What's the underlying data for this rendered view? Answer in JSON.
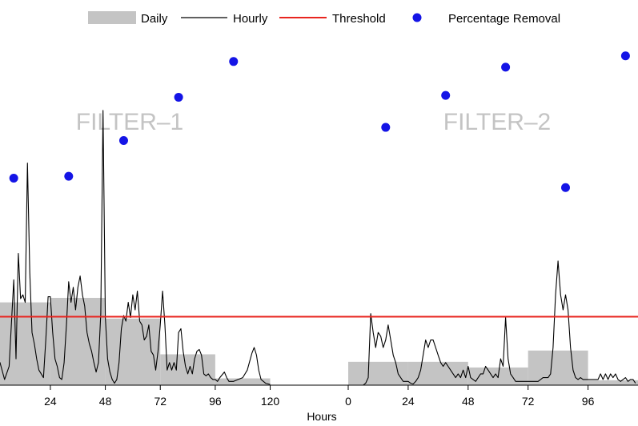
{
  "chart_data": {
    "type": "bar",
    "xlabel": "Hours",
    "legend": {
      "position": "top",
      "entries": [
        {
          "name": "Daily",
          "kind": "bar"
        },
        {
          "name": "Hourly",
          "kind": "line"
        },
        {
          "name": "Threshold",
          "kind": "line"
        },
        {
          "name": "Percentage Removal",
          "kind": "scatter"
        }
      ]
    },
    "colors": {
      "daily": "#c4c4c4",
      "hourly": "#000000",
      "threshold": "#e8251f",
      "removal": "#1414e6",
      "panel_label": "#c4c4c4"
    },
    "y_axis": {
      "label": "",
      "ylim": [
        0,
        100
      ],
      "ticks_shown": false
    },
    "threshold": 18.2,
    "panels": [
      {
        "label": "FILTER–1",
        "x_ticks": [
          "24",
          "48",
          "72",
          "96",
          "120"
        ],
        "x_tick_values": [
          24,
          48,
          72,
          96,
          120
        ],
        "xlim": [
          2,
          131
        ],
        "daily": [
          {
            "start": 0,
            "end": 24,
            "value": 22
          },
          {
            "start": 24,
            "end": 48,
            "value": 23.2
          },
          {
            "start": 48,
            "end": 72,
            "value": 17.7
          },
          {
            "start": 72,
            "end": 96,
            "value": 8.2
          },
          {
            "start": 96,
            "end": 120,
            "value": 1.8
          }
        ],
        "hourly": [
          [
            0,
            7
          ],
          [
            2,
            6
          ],
          [
            4,
            1.5
          ],
          [
            6,
            5
          ],
          [
            8,
            28
          ],
          [
            9,
            7
          ],
          [
            10,
            35
          ],
          [
            11,
            23
          ],
          [
            12,
            24
          ],
          [
            13,
            22
          ],
          [
            14,
            59
          ],
          [
            15,
            30
          ],
          [
            16,
            14
          ],
          [
            17,
            11
          ],
          [
            18,
            7
          ],
          [
            19,
            4
          ],
          [
            20,
            3
          ],
          [
            21,
            2
          ],
          [
            22,
            12
          ],
          [
            23,
            23.5
          ],
          [
            24,
            23.5
          ],
          [
            25,
            14
          ],
          [
            26,
            7
          ],
          [
            27,
            5
          ],
          [
            28,
            2
          ],
          [
            29,
            1.5
          ],
          [
            30,
            6
          ],
          [
            31,
            16
          ],
          [
            32,
            27.5
          ],
          [
            33,
            22
          ],
          [
            34,
            26
          ],
          [
            35,
            20
          ],
          [
            36,
            26
          ],
          [
            37,
            29
          ],
          [
            38,
            24
          ],
          [
            39,
            21
          ],
          [
            40,
            14
          ],
          [
            41,
            11
          ],
          [
            42,
            9
          ],
          [
            43,
            6
          ],
          [
            44,
            3.5
          ],
          [
            45,
            6
          ],
          [
            46,
            19
          ],
          [
            47,
            73
          ],
          [
            48,
            18
          ],
          [
            49,
            7
          ],
          [
            50,
            3.5
          ],
          [
            51,
            1.5
          ],
          [
            52,
            0.5
          ],
          [
            53,
            1.5
          ],
          [
            54,
            6
          ],
          [
            55,
            15
          ],
          [
            56,
            18.5
          ],
          [
            57,
            17
          ],
          [
            58,
            22
          ],
          [
            59,
            18
          ],
          [
            60,
            24
          ],
          [
            61,
            20
          ],
          [
            62,
            25
          ],
          [
            63,
            17
          ],
          [
            64,
            16
          ],
          [
            65,
            12
          ],
          [
            66,
            13
          ],
          [
            67,
            16
          ],
          [
            68,
            9
          ],
          [
            69,
            8
          ],
          [
            70,
            4
          ],
          [
            71,
            9
          ],
          [
            72,
            16
          ],
          [
            73,
            25
          ],
          [
            74,
            16
          ],
          [
            75,
            4
          ],
          [
            76,
            6
          ],
          [
            77,
            4
          ],
          [
            78,
            6
          ],
          [
            79,
            4
          ],
          [
            80,
            14
          ],
          [
            81,
            15
          ],
          [
            82,
            9
          ],
          [
            83,
            5
          ],
          [
            84,
            3
          ],
          [
            85,
            5
          ],
          [
            86,
            3
          ],
          [
            87,
            7
          ],
          [
            88,
            9
          ],
          [
            89,
            9.5
          ],
          [
            90,
            8
          ],
          [
            91,
            3
          ],
          [
            92,
            2.5
          ],
          [
            93,
            3
          ],
          [
            94,
            2
          ],
          [
            95,
            1.5
          ],
          [
            96,
            1.5
          ],
          [
            97,
            1
          ],
          [
            98,
            2
          ],
          [
            100,
            3.5
          ],
          [
            101,
            2
          ],
          [
            102,
            1
          ],
          [
            104,
            1
          ],
          [
            106,
            1.5
          ],
          [
            108,
            2
          ],
          [
            110,
            4
          ],
          [
            112,
            8.5
          ],
          [
            113,
            10
          ],
          [
            114,
            8
          ],
          [
            115,
            4
          ],
          [
            116,
            1.5
          ],
          [
            118,
            0.5
          ],
          [
            120,
            0.2
          ]
        ],
        "removal": [
          [
            8,
            55
          ],
          [
            32,
            55.5
          ],
          [
            56,
            65
          ],
          [
            80,
            76.5
          ],
          [
            104,
            86
          ]
        ]
      },
      {
        "label": "FILTER–2",
        "x_ticks": [
          "0",
          "24",
          "48",
          "72",
          "96"
        ],
        "x_tick_values": [
          0,
          24,
          48,
          72,
          96
        ],
        "xlim": [
          0,
          116
        ],
        "daily": [
          {
            "start": 0,
            "end": 24,
            "value": 6.2
          },
          {
            "start": 24,
            "end": 48,
            "value": 6.2
          },
          {
            "start": 48,
            "end": 72,
            "value": 4.7
          },
          {
            "start": 72,
            "end": 96,
            "value": 9.2
          },
          {
            "start": 96,
            "end": 120,
            "value": 1.3
          }
        ],
        "hourly": [
          [
            0,
            0
          ],
          [
            2,
            0
          ],
          [
            4,
            0
          ],
          [
            6,
            0
          ],
          [
            7,
            0.5
          ],
          [
            8,
            2
          ],
          [
            9,
            19
          ],
          [
            10,
            14
          ],
          [
            11,
            10
          ],
          [
            12,
            14
          ],
          [
            13,
            13
          ],
          [
            14,
            10
          ],
          [
            15,
            12
          ],
          [
            16,
            16
          ],
          [
            17,
            12
          ],
          [
            18,
            8
          ],
          [
            19,
            6
          ],
          [
            20,
            3
          ],
          [
            21,
            2
          ],
          [
            22,
            1
          ],
          [
            23,
            1
          ],
          [
            24,
            1
          ],
          [
            25,
            0.5
          ],
          [
            26,
            0.3
          ],
          [
            27,
            1
          ],
          [
            28,
            2
          ],
          [
            29,
            4
          ],
          [
            30,
            8
          ],
          [
            31,
            12
          ],
          [
            32,
            10
          ],
          [
            33,
            12
          ],
          [
            34,
            12
          ],
          [
            35,
            10
          ],
          [
            36,
            8
          ],
          [
            37,
            6
          ],
          [
            38,
            5
          ],
          [
            39,
            6
          ],
          [
            40,
            5
          ],
          [
            41,
            4
          ],
          [
            42,
            3
          ],
          [
            43,
            2
          ],
          [
            44,
            3
          ],
          [
            45,
            2
          ],
          [
            46,
            4
          ],
          [
            47,
            2
          ],
          [
            48,
            5
          ],
          [
            49,
            2
          ],
          [
            50,
            1.5
          ],
          [
            51,
            1
          ],
          [
            52,
            2
          ],
          [
            53,
            3
          ],
          [
            54,
            3
          ],
          [
            55,
            5
          ],
          [
            56,
            4
          ],
          [
            57,
            3
          ],
          [
            58,
            2
          ],
          [
            59,
            3
          ],
          [
            60,
            2
          ],
          [
            61,
            7
          ],
          [
            62,
            5
          ],
          [
            63,
            18
          ],
          [
            64,
            7
          ],
          [
            65,
            3
          ],
          [
            66,
            2
          ],
          [
            67,
            1
          ],
          [
            68,
            1
          ],
          [
            69,
            1
          ],
          [
            70,
            1
          ],
          [
            72,
            1
          ],
          [
            74,
            1
          ],
          [
            76,
            1
          ],
          [
            78,
            2
          ],
          [
            80,
            2
          ],
          [
            81,
            3
          ],
          [
            82,
            10
          ],
          [
            83,
            24
          ],
          [
            84,
            33
          ],
          [
            85,
            24
          ],
          [
            86,
            20
          ],
          [
            87,
            24
          ],
          [
            88,
            20
          ],
          [
            89,
            10
          ],
          [
            90,
            4
          ],
          [
            91,
            2
          ],
          [
            92,
            1.5
          ],
          [
            93,
            2
          ],
          [
            94,
            1.5
          ],
          [
            96,
            1.5
          ],
          [
            98,
            1.5
          ],
          [
            100,
            1.5
          ],
          [
            101,
            3
          ],
          [
            102,
            1.5
          ],
          [
            103,
            3
          ],
          [
            104,
            1.5
          ],
          [
            105,
            3
          ],
          [
            106,
            2
          ],
          [
            107,
            3
          ],
          [
            108,
            1.5
          ],
          [
            109,
            1
          ],
          [
            110,
            1.5
          ],
          [
            111,
            2
          ],
          [
            112,
            1
          ],
          [
            113,
            1.5
          ],
          [
            114,
            1.5
          ],
          [
            115,
            0.5
          ]
        ],
        "removal": [
          [
            15,
            68.5
          ],
          [
            39,
            77
          ],
          [
            63,
            84.5
          ],
          [
            87,
            52.5
          ],
          [
            111,
            87.5
          ]
        ]
      }
    ]
  }
}
